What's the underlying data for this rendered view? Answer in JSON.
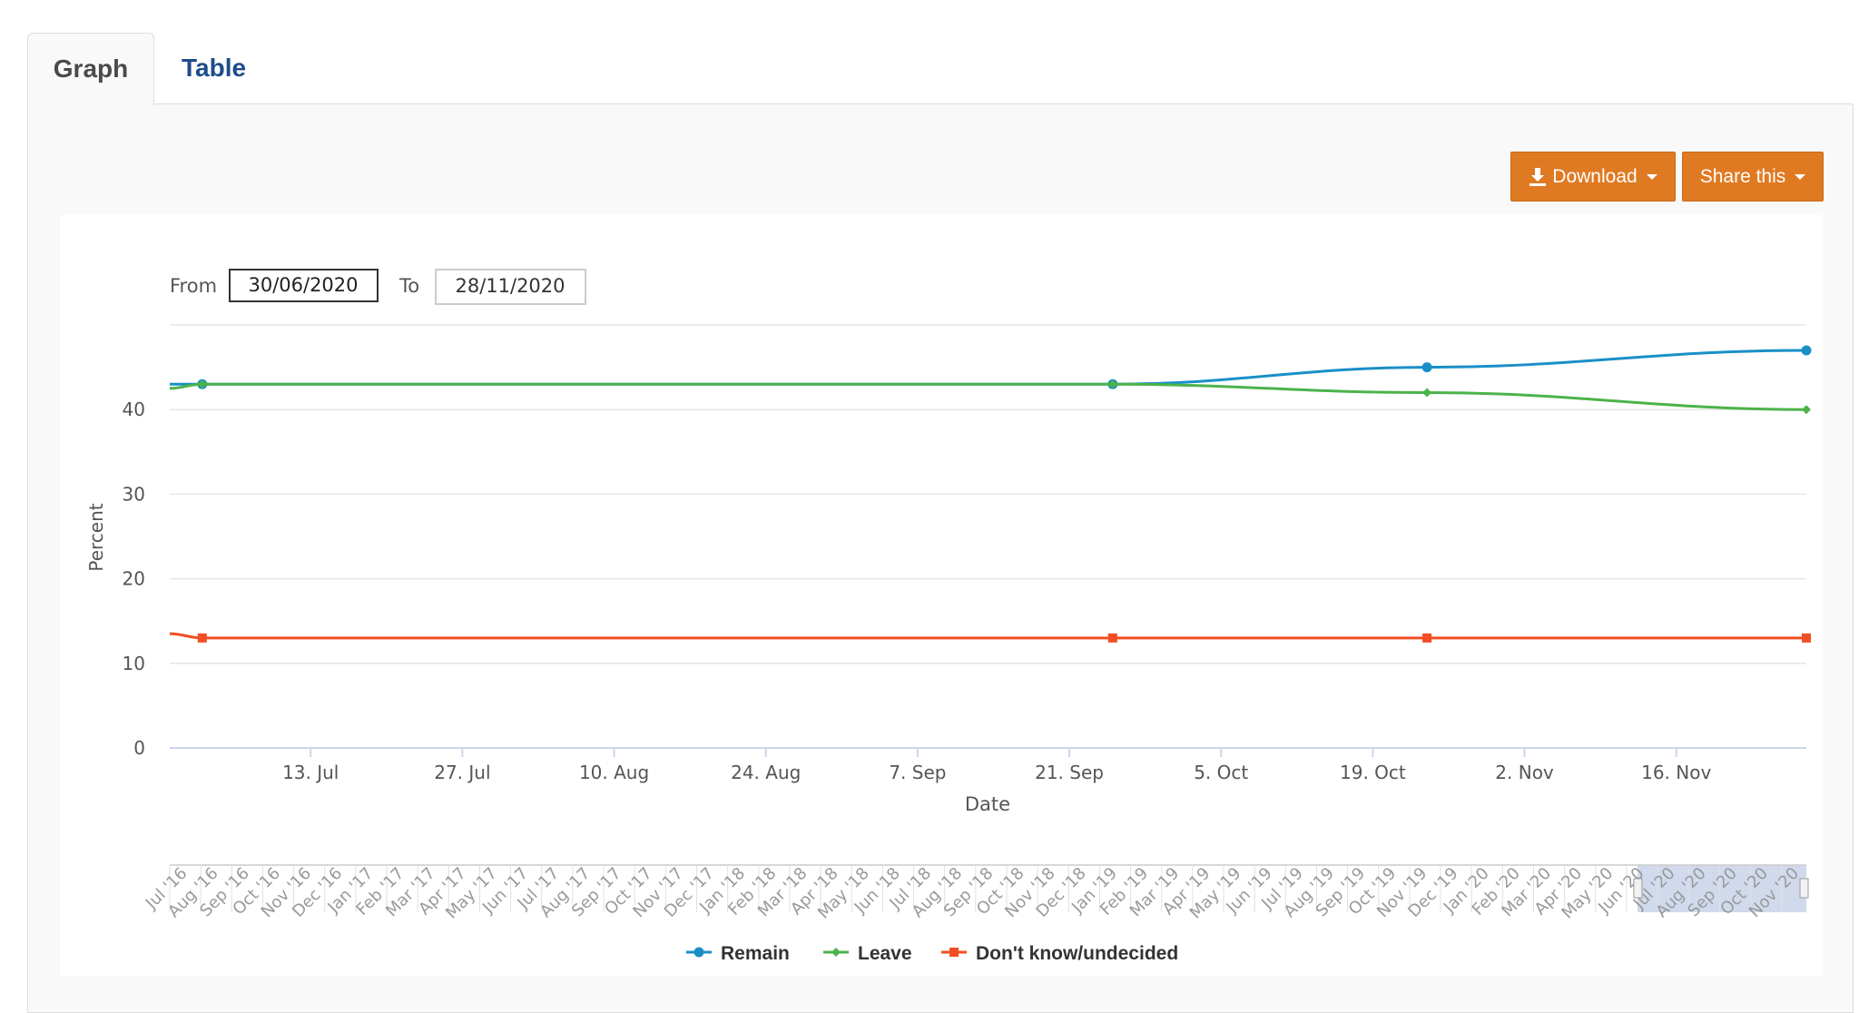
{
  "tabs": {
    "graph": "Graph",
    "table": "Table"
  },
  "toolbar": {
    "download_label": "Download",
    "share_label": "Share this",
    "download_icon": "download-icon"
  },
  "range": {
    "from_label": "From",
    "from_value": "30/06/2020",
    "to_label": "To",
    "to_value": "28/11/2020"
  },
  "colors": {
    "accent": "#e07a22",
    "remain": "#1a8fc7",
    "leave": "#4cb34a",
    "undecided": "#f04e23",
    "tab_text": "#1d4c8c"
  },
  "chart_data": {
    "type": "line",
    "xlabel": "Date",
    "ylabel": "Percent",
    "ylim": [
      0,
      50
    ],
    "yticks": [
      "0",
      "10",
      "20",
      "30",
      "40"
    ],
    "x_range": [
      "2020-06-30",
      "2020-11-28"
    ],
    "xticks": [
      "13. Jul",
      "27. Jul",
      "10. Aug",
      "24. Aug",
      "7. Sep",
      "21. Sep",
      "5. Oct",
      "19. Oct",
      "2. Nov",
      "16. Nov"
    ],
    "grid": true,
    "legend": "bottom-center",
    "series": [
      {
        "name": "Remain",
        "marker": "circle",
        "x": [
          "2020-06-30",
          "2020-07-03",
          "2020-09-25",
          "2020-10-24",
          "2020-11-28"
        ],
        "values": [
          43,
          43,
          43,
          45,
          47
        ]
      },
      {
        "name": "Leave",
        "marker": "diamond",
        "x": [
          "2020-06-30",
          "2020-07-03",
          "2020-09-25",
          "2020-10-24",
          "2020-11-28"
        ],
        "values": [
          42.5,
          43,
          43,
          42,
          40
        ]
      },
      {
        "name": "Don't know/undecided",
        "marker": "square",
        "x": [
          "2020-06-30",
          "2020-07-03",
          "2020-09-25",
          "2020-10-24",
          "2020-11-28"
        ],
        "values": [
          13.5,
          13,
          13,
          13,
          13
        ]
      }
    ],
    "navigator": {
      "labels": [
        "Jul '16",
        "Aug '16",
        "Sep '16",
        "Oct '16",
        "Nov '16",
        "Dec '16",
        "Jan '17",
        "Feb '17",
        "Mar '17",
        "Apr '17",
        "May '17",
        "Jun '17",
        "Jul '17",
        "Aug '17",
        "Sep '17",
        "Oct '17",
        "Nov '17",
        "Dec '17",
        "Jan '18",
        "Feb '18",
        "Mar '18",
        "Apr '18",
        "May '18",
        "Jun '18",
        "Jul '18",
        "Aug '18",
        "Sep '18",
        "Oct '18",
        "Nov '18",
        "Dec '18",
        "Jan '19",
        "Feb '19",
        "Mar '19",
        "Apr '19",
        "May '19",
        "Jun '19",
        "Jul '19",
        "Aug '19",
        "Sep '19",
        "Oct '19",
        "Nov '19",
        "Dec '19",
        "Jan '20",
        "Feb '20",
        "Mar '20",
        "Apr '20",
        "May '20",
        "Jun '20",
        "Jul '20",
        "Aug '20",
        "Sep '20",
        "Oct '20",
        "Nov '20"
      ],
      "selected_from": "Jun '20",
      "selected_to": "Nov '20"
    }
  }
}
